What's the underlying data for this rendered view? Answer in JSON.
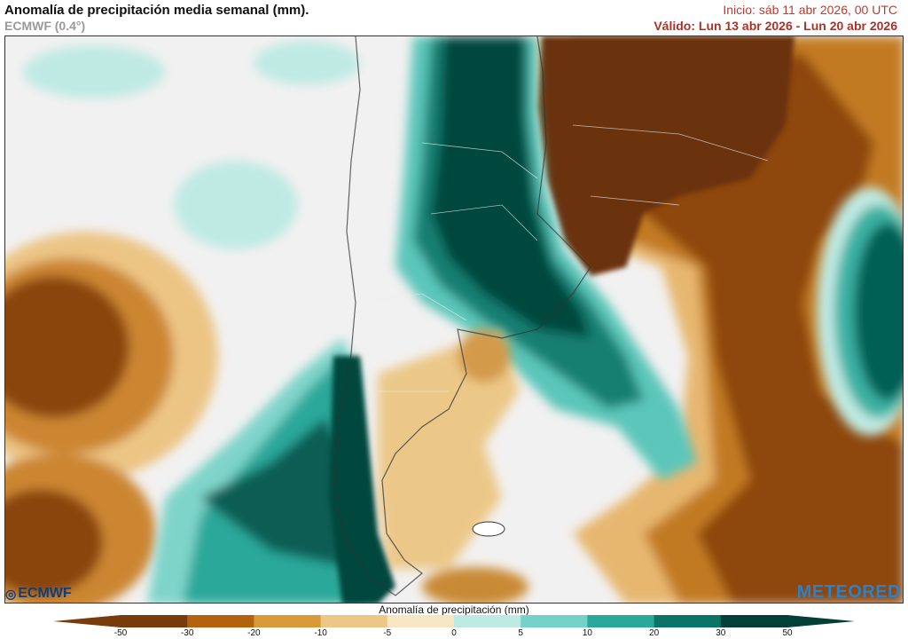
{
  "header": {
    "title": "Anomalía de precipitación media semanal (mm).",
    "subtitle": "ECMWF (0.4°)",
    "init": "Inicio:  sáb 11 abr 2026, 00 UTC",
    "valid": "Válido: Lun 13 abr 2026 - Lun 20 abr 2026"
  },
  "logos": {
    "left": "ECMWF",
    "right": "METEORED"
  },
  "colorbar": {
    "title": "Anomalía de precipitación (mm)",
    "ticks": [
      "-50",
      "-30",
      "-20",
      "-10",
      "-5",
      "0",
      "5",
      "10",
      "20",
      "30",
      "50"
    ],
    "colors": [
      "#7a3b0c",
      "#b4620e",
      "#d99a3a",
      "#ecc888",
      "#f7e6c4",
      "#f4f2f2",
      "#bfeae4",
      "#74d2c8",
      "#2aa89a",
      "#0b7468",
      "#023f38"
    ]
  },
  "colors": {
    "dry_extreme": "#6b3208",
    "dry_strong": "#a9570f",
    "dry_moderate": "#d18e38",
    "dry_light": "#ebc486",
    "neutral": "#f2f1f1",
    "wet_light": "#b6e6df",
    "wet_moderate": "#5cc6ba",
    "wet_strong": "#1e9486",
    "wet_extreme": "#04463e"
  }
}
